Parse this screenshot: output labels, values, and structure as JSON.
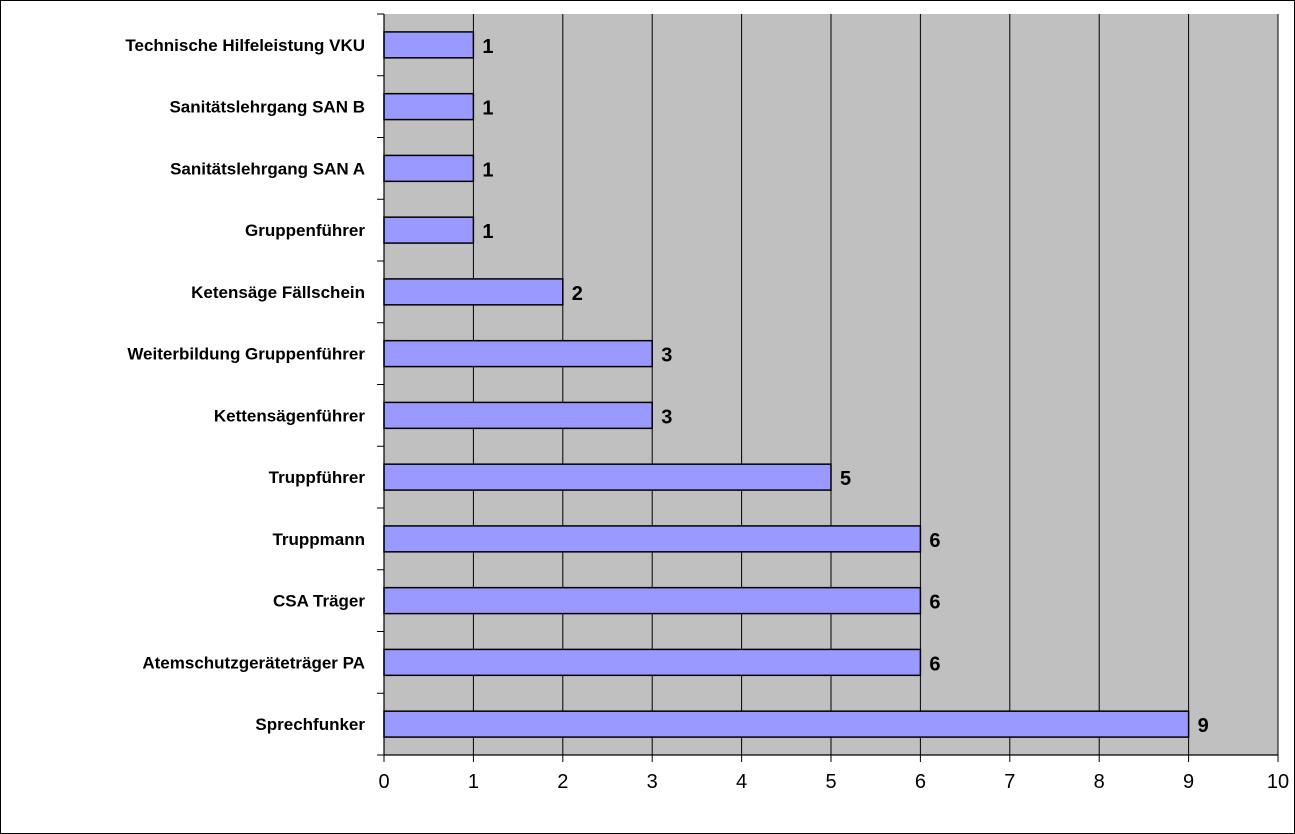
{
  "chart_data": {
    "type": "bar",
    "orientation": "horizontal",
    "categories": [
      "Technische Hilfeleistung VKU",
      "Sanitätslehrgang SAN B",
      "Sanitätslehrgang SAN A",
      "Gruppenführer",
      "Ketensäge Fällschein",
      "Weiterbildung Gruppenführer",
      "Kettensägenführer",
      "Truppführer",
      "Truppmann",
      "CSA Träger",
      "Atemschutzgeräteträger PA",
      "Sprechfunker"
    ],
    "values": [
      1,
      1,
      1,
      1,
      2,
      3,
      3,
      5,
      6,
      6,
      6,
      9
    ],
    "data_labels": [
      "1",
      "1",
      "1",
      "1",
      "2",
      "3",
      "3",
      "5",
      "6",
      "6",
      "6",
      "9"
    ],
    "x_ticks": [
      "0",
      "1",
      "2",
      "3",
      "4",
      "5",
      "6",
      "7",
      "8",
      "9",
      "10"
    ],
    "xlim": [
      0,
      10
    ],
    "title": "",
    "xlabel": "",
    "ylabel": "",
    "grid": "vertical",
    "legend": "none",
    "colors": {
      "bar_fill": "#9999ff",
      "bar_stroke": "#000000",
      "plot_background": "#c0c0c0",
      "gridline": "#000000"
    }
  }
}
